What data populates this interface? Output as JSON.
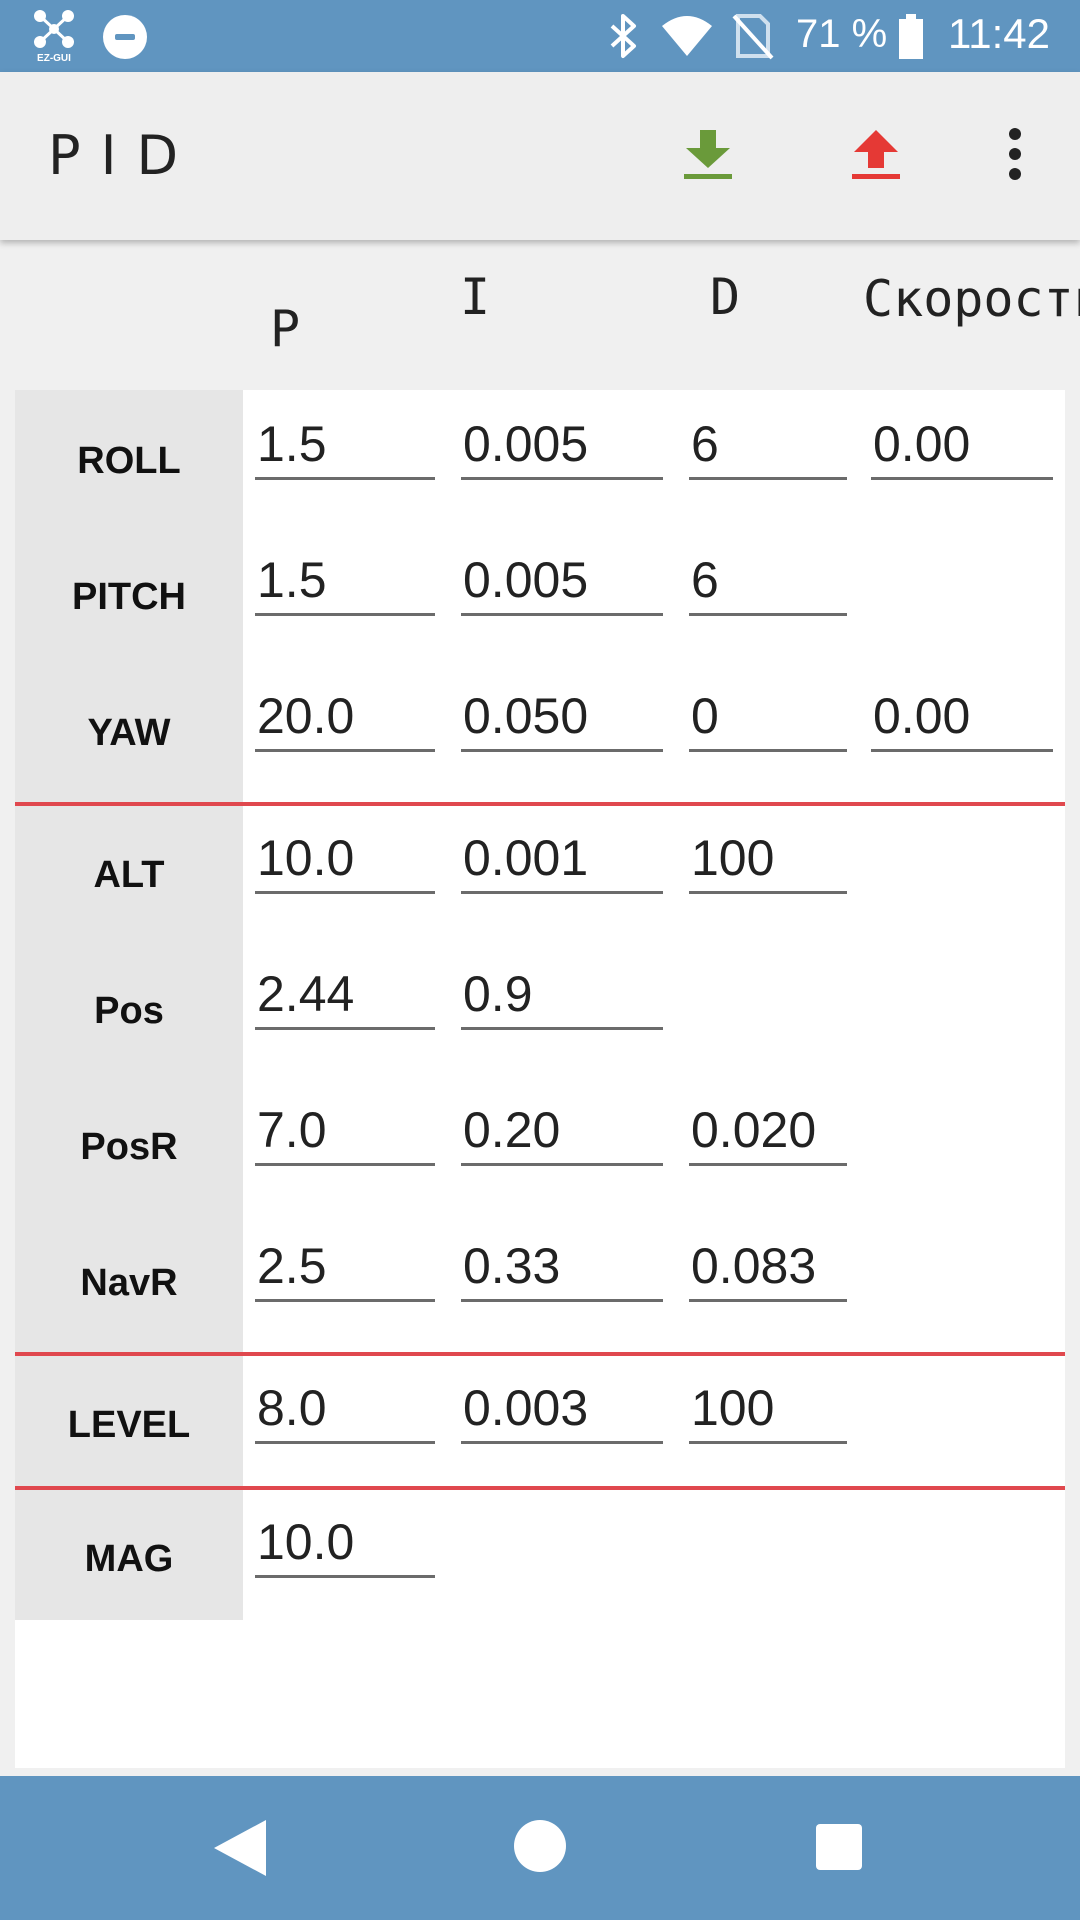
{
  "status_bar": {
    "app_logo_text": "EZ-GUI",
    "battery_text": "71 %",
    "time": "11:42"
  },
  "app_bar": {
    "title": "PID",
    "icons": [
      "download-icon",
      "upload-icon",
      "more-vert-icon"
    ],
    "download_color": "#6a9a3a",
    "upload_color": "#e53935"
  },
  "table": {
    "headers": {
      "p": "P",
      "i": "I",
      "d": "D",
      "speed": "Скорость"
    },
    "rows": [
      {
        "label": "ROLL",
        "p": "1.5",
        "i": "0.005",
        "d": "6",
        "speed": "0.00"
      },
      {
        "label": "PITCH",
        "p": "1.5",
        "i": "0.005",
        "d": "6"
      },
      {
        "label": "YAW",
        "p": "20.0",
        "i": "0.050",
        "d": "0",
        "speed": "0.00"
      },
      {
        "label": "ALT",
        "p": "10.0",
        "i": "0.001",
        "d": "100"
      },
      {
        "label": "Pos",
        "p": "2.44",
        "i": "0.9"
      },
      {
        "label": "PosR",
        "p": "7.0",
        "i": "0.20",
        "d": "0.020"
      },
      {
        "label": "NavR",
        "p": "2.5",
        "i": "0.33",
        "d": "0.083"
      },
      {
        "label": "LEVEL",
        "p": "8.0",
        "i": "0.003",
        "d": "100"
      },
      {
        "label": "MAG",
        "p": "10.0"
      }
    ],
    "divider_color": "#e0484e"
  },
  "nav_bar": {
    "buttons": [
      "back-icon",
      "home-icon",
      "recents-icon"
    ]
  }
}
